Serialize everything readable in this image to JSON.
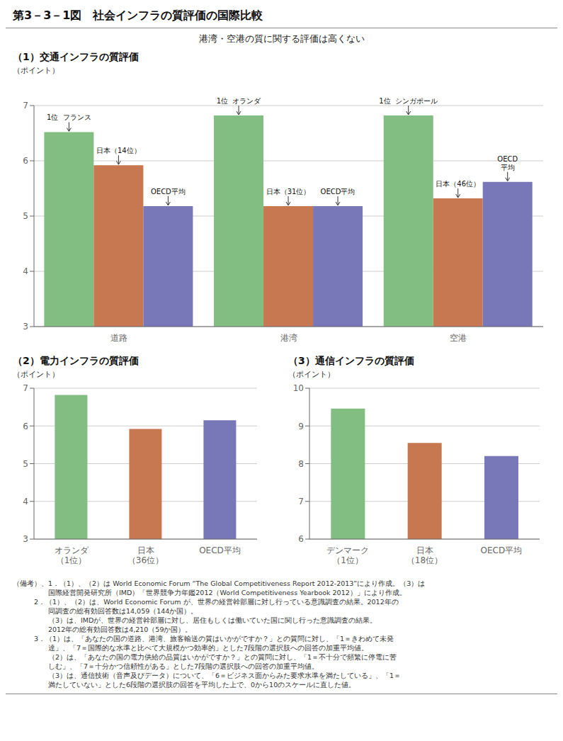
{
  "title": "第3－3－1図　社会インフラの質評価の国際比較",
  "subtitle": "港湾・空港の質に関する評価は高くない",
  "notes": [
    "（備考）、1．（1）、（2）は World Economic Forum “The Global Competitiveness Report 2012-2013”により作成。（3）は",
    "　　　　　国際経営開発研究所（IMD）「世界競争力年鑑2012（World Competitiveness Yearbook 2012）」により作成。",
    "　　　2．（1）、（2）は、World Economic Forum が、世界の経営幹部層に対し行っている意識調査の結果。2012年の",
    "　　　　　同調査の総有効回答数は14,059（144か国）。",
    "　　　　　（3）は、IMDが、世界の経営幹部層に対し、居住もしくは働いていた国に関し行った意識調査の結果。",
    "　　　　　2012年の総有効回答数は4,210（59か国）。",
    "　　　3．（1）は、「あなたの国の道路、港湾、旅客輸送の質はいかがですか？」との質問に対し、「1＝きわめて未発",
    "　　　　　達」、「7＝国際的な水準と比べて大規模かつ効率的」とした7段階の選択肢への回答の加重平均値。",
    "　　　　　（2）は、「あなたの国の電力供給の品質はいかがですか？」との質問に対し、「1＝不十分で頻繁に停電に苦",
    "　　　　　しむ」、「7＝十分かつ信頼性がある」とした7段階の選択肢への回答の加重平均値。",
    "　　　　　（3）は、通信技術（音声及びデータ）について、「6＝ビジネス面からみた要求水準を満たしている」、「1＝",
    "　　　　　満たしていない」とした6段階の選択肢の回答を平均した上で、0から10のスケールに直した値。"
  ],
  "chart_data": [
    {
      "type": "bar",
      "title": "（1）交通インフラの質評価",
      "ylabel": "（ポイント）",
      "categories": [
        "道路",
        "港湾",
        "空港"
      ],
      "series": [
        {
          "color": "#82be82",
          "values": [
            6.52,
            6.82,
            6.82
          ],
          "annotations": [
            "1位  フランス",
            "1位  オランダ",
            "1位  シンガポール"
          ]
        },
        {
          "color": "#c87850",
          "values": [
            5.92,
            5.18,
            5.32
          ],
          "annotations": [
            "日本（14位）",
            "日本（31位）",
            "日本（46位）"
          ]
        },
        {
          "color": "#7878b8",
          "values": [
            5.18,
            5.18,
            5.62
          ],
          "annotations": [
            "OECD平均",
            "OECD平均",
            "OECD\n平均"
          ]
        }
      ],
      "ylim": [
        3,
        7
      ],
      "yticks": [
        3,
        4,
        5,
        6,
        7
      ],
      "grid": true
    },
    {
      "type": "bar",
      "title": "（2）電力インフラの質評価",
      "ylabel": "（ポイント）",
      "categories": [
        "オランダ\n（1位）",
        "日本\n（36位）",
        "OECD平均"
      ],
      "values": [
        6.82,
        5.92,
        6.15
      ],
      "colors": [
        "#82be82",
        "#c87850",
        "#7878b8"
      ],
      "ylim": [
        3,
        7
      ],
      "yticks": [
        3,
        4,
        5,
        6,
        7
      ],
      "grid": true
    },
    {
      "type": "bar",
      "title": "（3）通信インフラの質評価",
      "ylabel": "（ポイント）",
      "categories": [
        "デンマーク\n（1位）",
        "日本\n（18位）",
        "OECD平均"
      ],
      "values": [
        9.46,
        8.55,
        8.2
      ],
      "colors": [
        "#82be82",
        "#c87850",
        "#7878b8"
      ],
      "ylim": [
        6,
        10
      ],
      "yticks": [
        6,
        7,
        8,
        9,
        10
      ],
      "grid": true
    }
  ]
}
